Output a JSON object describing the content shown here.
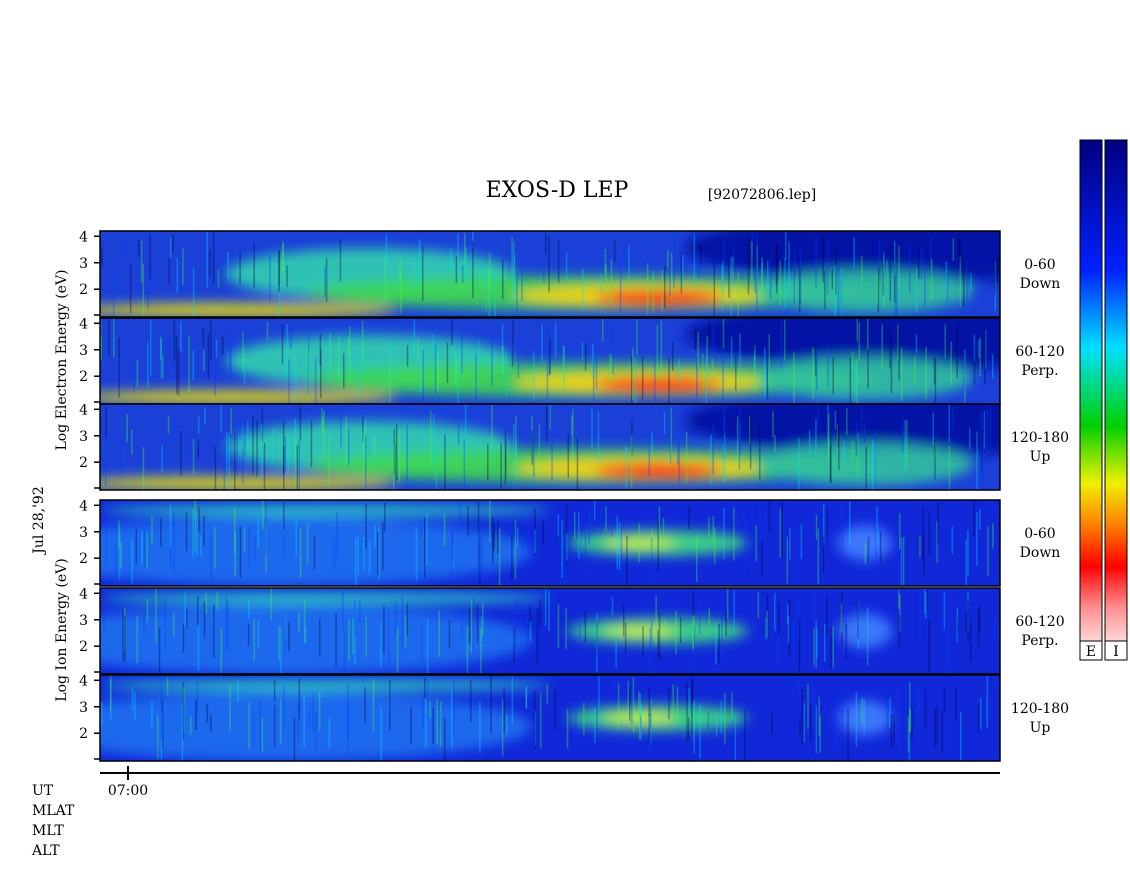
{
  "title": "EXOS-D LEP",
  "file": "[92072806.lep]",
  "date": "Jul 28,'92",
  "electron": {
    "axis_label": "Log Electron Energy (eV)",
    "panels": [
      {
        "pitch": "0-60",
        "dir": "Down"
      },
      {
        "pitch": "60-120",
        "dir": "Perp."
      },
      {
        "pitch": "120-180",
        "dir": "Up"
      }
    ]
  },
  "ion": {
    "axis_label": "Log Ion Energy (eV)",
    "panels": [
      {
        "pitch": "0-60",
        "dir": "Down"
      },
      {
        "pitch": "60-120",
        "dir": "Perp."
      },
      {
        "pitch": "120-180",
        "dir": "Up"
      }
    ]
  },
  "ylim": [
    0.95,
    4.2
  ],
  "yticks": [
    2,
    3,
    4
  ],
  "x_tick": "07:00",
  "footer_labels": [
    "UT",
    "MLAT",
    "MLT",
    "ALT"
  ],
  "colorbar_labels": [
    "E",
    "I"
  ]
}
